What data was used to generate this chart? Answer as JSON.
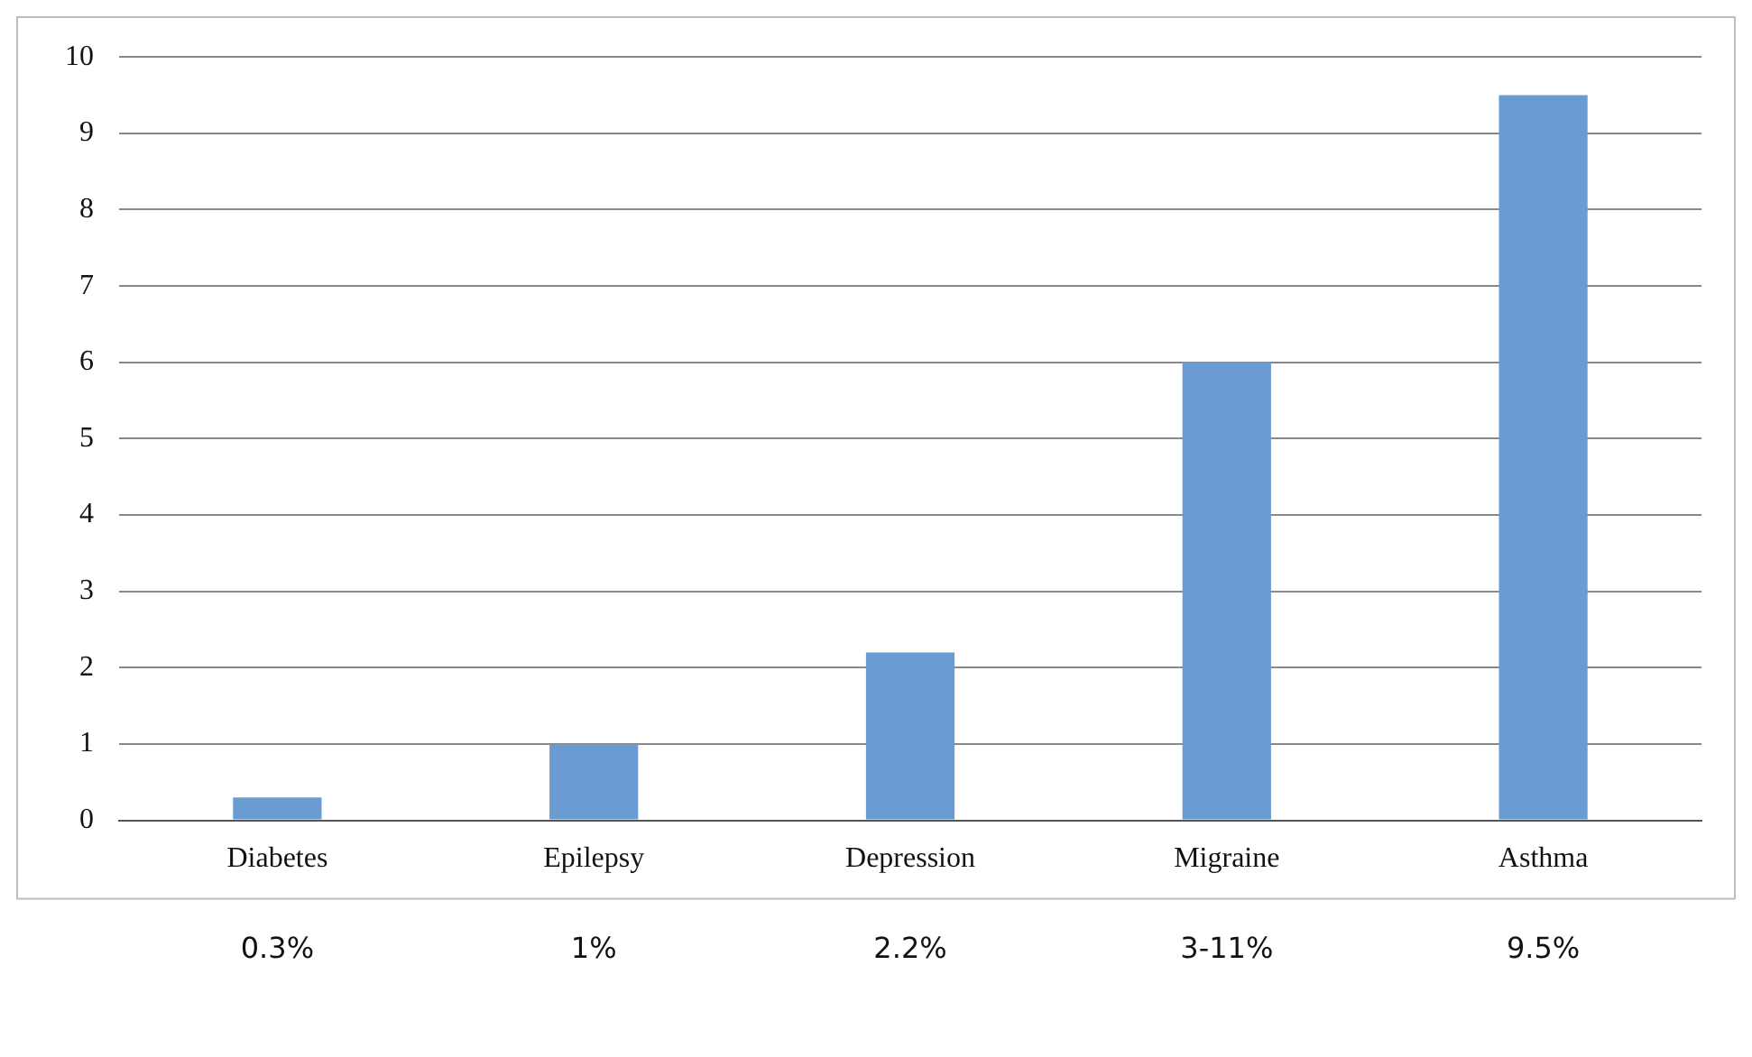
{
  "chart_data": {
    "type": "bar",
    "categories": [
      "Diabetes",
      "Epilepsy",
      "Depression",
      "Migraine",
      "Asthma"
    ],
    "values": [
      0.3,
      1,
      2.2,
      6,
      9.5
    ],
    "annotations": [
      "0.3%",
      "1%",
      "2.2%",
      "3-11%",
      "9.5%"
    ],
    "color": "#6a9bd1",
    "ylim": [
      0,
      10
    ],
    "yticks": [
      0,
      1,
      2,
      3,
      4,
      5,
      6,
      7,
      8,
      9,
      10
    ],
    "grid": "y",
    "legend": false
  }
}
